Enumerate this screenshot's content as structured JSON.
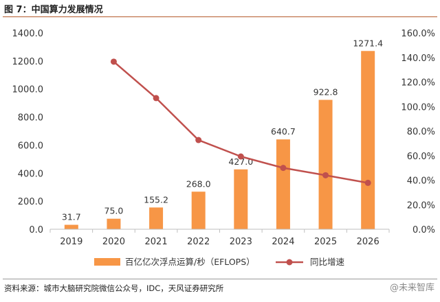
{
  "figure": {
    "title": "图 7：中国算力发展情况",
    "source": "资料来源：城市大脑研究院微信公众号，IDC，天风证券研究所",
    "watermark": "@未来智库"
  },
  "colors": {
    "bar": "#f79646",
    "line": "#c0504d",
    "axis": "#bfbfbf",
    "title_rule": "#b55a2a"
  },
  "chart_data": {
    "type": "bar",
    "title": "",
    "categories": [
      "2019",
      "2020",
      "2021",
      "2022",
      "2023",
      "2024",
      "2025",
      "2026"
    ],
    "series": [
      {
        "name": "百亿亿次浮点运算/秒（EFLOPS）",
        "type": "bar",
        "axis": "left",
        "values": [
          31.7,
          75.0,
          155.2,
          268.0,
          427.0,
          640.7,
          922.8,
          1271.4
        ],
        "labels": [
          "31.7",
          "75.0",
          "155.2",
          "268.0",
          "427.0",
          "640.7",
          "922.8",
          "1271.4"
        ]
      },
      {
        "name": "同比增速",
        "type": "line",
        "axis": "right",
        "values": [
          null,
          136.6,
          106.9,
          72.7,
          59.3,
          50.0,
          44.0,
          37.8
        ]
      }
    ],
    "ylim": [
      0,
      1400
    ],
    "y_ticks": [
      "0.0",
      "200.0",
      "400.0",
      "600.0",
      "800.0",
      "1000.0",
      "1200.0",
      "1400.0"
    ],
    "y2lim": [
      0,
      160
    ],
    "y2_ticks": [
      "0.0%",
      "20.0%",
      "40.0%",
      "60.0%",
      "80.0%",
      "100.0%",
      "120.0%",
      "140.0%",
      "160.0%"
    ],
    "xlabel": "",
    "ylabel": "",
    "grid": false,
    "legend_position": "bottom"
  }
}
